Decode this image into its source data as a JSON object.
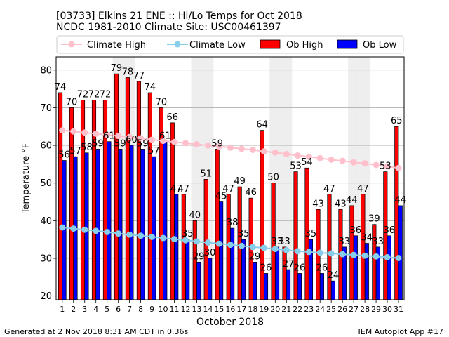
{
  "title_line1": "[03733] Elkins 21 ENE :: Hi/Lo Temps for Oct 2018",
  "title_line2": "NCDC 1981-2010 Climate Site: USC00461397",
  "footer_left": "Generated at 2 Nov 2018 8:31 AM CDT in 0.36s",
  "footer_right": "IEM Autoplot App #17",
  "chart_data": {
    "type": "bar",
    "title": "[03733] Elkins 21 ENE :: Hi/Lo Temps for Oct 2018",
    "subtitle": "NCDC 1981-2010 Climate Site: USC00461397",
    "xlabel": "October 2018",
    "ylabel": "Temperature °F",
    "ylim": [
      19,
      83.5
    ],
    "yticks": [
      20,
      30,
      40,
      50,
      60,
      70,
      80
    ],
    "grid": true,
    "legend_position": "top",
    "categories": [
      "1",
      "2",
      "3",
      "4",
      "5",
      "6",
      "7",
      "8",
      "9",
      "10",
      "11",
      "12",
      "13",
      "14",
      "15",
      "16",
      "17",
      "18",
      "19",
      "20",
      "21",
      "22",
      "23",
      "24",
      "25",
      "26",
      "27",
      "28",
      "29",
      "30",
      "31"
    ],
    "weekend_shading_days": [
      6,
      7,
      13,
      14,
      20,
      21,
      27,
      28
    ],
    "legend": [
      "Climate High",
      "Climate Low",
      "Ob High",
      "Ob Low"
    ],
    "colors": {
      "ob_high": "#ff0000",
      "ob_low": "#0000ff",
      "climate_high": "#ffc0cb",
      "climate_low": "#87ceeb",
      "shade": "#eeeeee"
    },
    "series": [
      {
        "name": "Ob High",
        "values": [
          74,
          70,
          72,
          72,
          72,
          79,
          78,
          77,
          74,
          70,
          66,
          47,
          40,
          51,
          59,
          47,
          49,
          46,
          64,
          50,
          33,
          53,
          54,
          43,
          47,
          43,
          44,
          47,
          39,
          53,
          65
        ]
      },
      {
        "name": "Ob Low",
        "values": [
          56,
          57,
          58,
          59,
          61,
          59,
          60,
          59,
          57,
          61,
          47,
          35,
          29,
          30,
          45,
          38,
          35,
          29,
          26,
          33,
          27,
          26,
          35,
          26,
          24,
          33,
          36,
          34,
          33,
          36,
          44
        ]
      },
      {
        "name": "Climate High",
        "values": [
          64.0,
          63.7,
          63.4,
          63.1,
          62.8,
          62.5,
          62.2,
          61.9,
          61.5,
          61.2,
          60.9,
          60.6,
          60.3,
          60.0,
          59.7,
          59.4,
          59.1,
          58.8,
          58.4,
          58.1,
          57.7,
          57.3,
          57.0,
          56.6,
          56.2,
          55.9,
          55.5,
          55.2,
          54.8,
          54.4,
          54.0
        ]
      },
      {
        "name": "Climate Low",
        "values": [
          38.2,
          37.9,
          37.6,
          37.3,
          37.0,
          36.6,
          36.3,
          36.0,
          35.7,
          35.4,
          35.1,
          34.8,
          34.5,
          34.2,
          33.9,
          33.6,
          33.3,
          33.0,
          32.8,
          32.5,
          32.2,
          31.9,
          31.7,
          31.5,
          31.3,
          31.1,
          30.9,
          30.7,
          30.5,
          30.3,
          30.1
        ]
      }
    ]
  }
}
